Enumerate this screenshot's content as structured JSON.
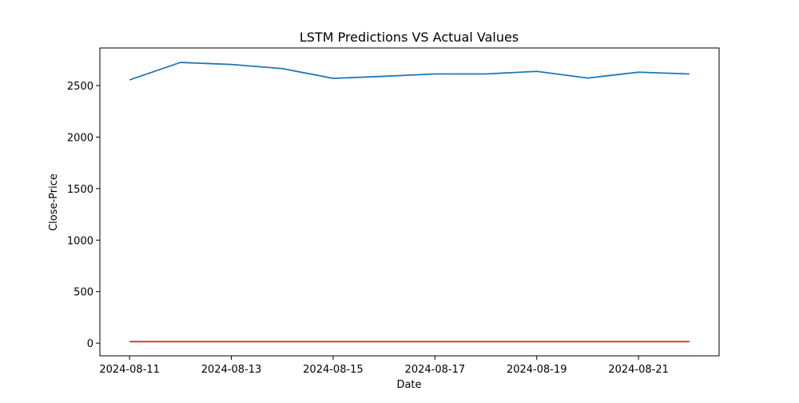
{
  "chart_data": {
    "type": "line",
    "title": "LSTM Predictions VS Actual Values",
    "xlabel": "Date",
    "ylabel": "Close-Price",
    "x": [
      "2024-08-11",
      "2024-08-12",
      "2024-08-13",
      "2024-08-14",
      "2024-08-15",
      "2024-08-16",
      "2024-08-17",
      "2024-08-18",
      "2024-08-19",
      "2024-08-20",
      "2024-08-21",
      "2024-08-22"
    ],
    "series": [
      {
        "color": "#1f77b4",
        "values": [
          2555,
          2725,
          2705,
          2665,
          2570,
          2590,
          2613,
          2613,
          2638,
          2573,
          2630,
          2613
        ]
      },
      {
        "color": "#d62728",
        "values": [
          15,
          15,
          15,
          15,
          15,
          15,
          15,
          15,
          15,
          15,
          15,
          15
        ]
      }
    ],
    "xticks": [
      "2024-08-11",
      "2024-08-13",
      "2024-08-15",
      "2024-08-17",
      "2024-08-19",
      "2024-08-21"
    ],
    "yticks": [
      0,
      500,
      1000,
      1500,
      2000,
      2500
    ],
    "ylim": [
      -123,
      2865
    ],
    "xlim": [
      "2024-08-10T10:00",
      "2024-08-22T14:00"
    ],
    "grid": false,
    "legend": false
  }
}
